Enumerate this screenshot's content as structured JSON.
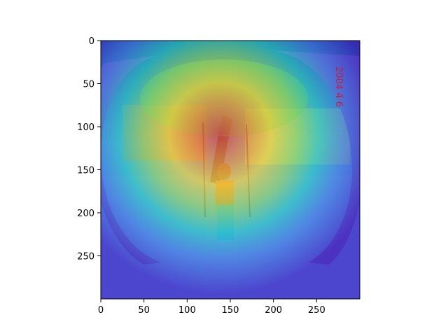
{
  "figure": {
    "image_description_icon": "heatmap-overlay-photo",
    "x_ticks": [
      "0",
      "50",
      "100",
      "150",
      "200",
      "250"
    ],
    "y_ticks": [
      "0",
      "50",
      "100",
      "150",
      "200",
      "250"
    ],
    "x_range": [
      0,
      300
    ],
    "y_range": [
      0,
      300
    ],
    "date_stamp": "2004 4 6",
    "colors": {
      "heat_low": "#3a2ec8",
      "heat_mid": "#27d3c6",
      "heat_high_yellow": "#f2e13a",
      "heat_peak_red": "#e2463a"
    }
  }
}
